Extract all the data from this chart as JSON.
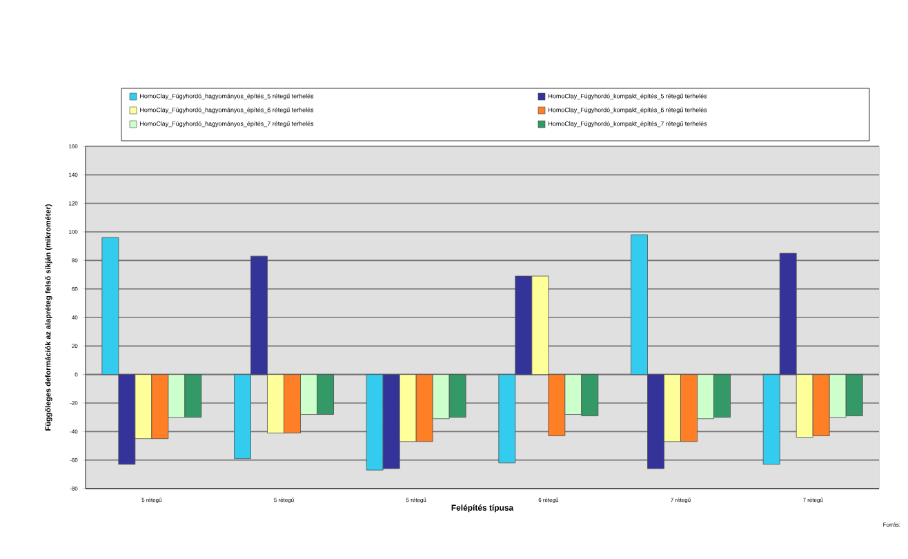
{
  "chart_data": {
    "type": "bar",
    "xlabel": "Felépítés típusa",
    "ylabel": "Függőleges deformációk az alapréteg felső síkján (mikrométer)",
    "categories": [
      "5 rétegű",
      "5 rétegű",
      "5 rétegű",
      "6 rétegű",
      "7 rétegű",
      "7 rétegű"
    ],
    "series": [
      {
        "name": "HomoClay_Fúgyhordó_hagyományos_építés_5 rétegű terhelés",
        "color": "#33ccee",
        "values": [
          96,
          -59,
          -67,
          -62,
          98,
          -63
        ]
      },
      {
        "name": "HomoClay_Fúgyhordó_kompakt_építés_5 rétegű terhelés",
        "color": "#333399",
        "values": [
          -63,
          83,
          -66,
          69,
          -66,
          85
        ]
      },
      {
        "name": "HomoClay_Fúgyhordó_hagyományos_építés_6 rétegű terhelés",
        "color": "#ffff99",
        "values": [
          -45,
          -41,
          -47,
          69,
          -47,
          -44
        ]
      },
      {
        "name": "HomoClay_Fúgyhordó_kompakt_építés_6 rétegű terhelés",
        "color": "#ff7f27",
        "values": [
          -45,
          -41,
          -47,
          -43,
          -47,
          -43
        ]
      },
      {
        "name": "HomoClay_Fúgyhordó_hagyományos_építés_7 rétegű terhelés",
        "color": "#ccffcc",
        "values": [
          -30,
          -28,
          -31,
          -28,
          -31,
          -30
        ]
      },
      {
        "name": "HomoClay_Fúgyhordó_kompakt_építés_7 rétegű terhelés",
        "color": "#339966",
        "values": [
          -30,
          -28,
          -30,
          -29,
          -30,
          -29
        ]
      }
    ],
    "ylim": [
      -80,
      160
    ],
    "yticks": [
      -80,
      -60,
      -40,
      -20,
      0,
      20,
      40,
      60,
      80,
      100,
      120,
      140,
      160
    ],
    "grid": "y",
    "legend": "top",
    "annotations": [
      "Forrás:"
    ]
  }
}
